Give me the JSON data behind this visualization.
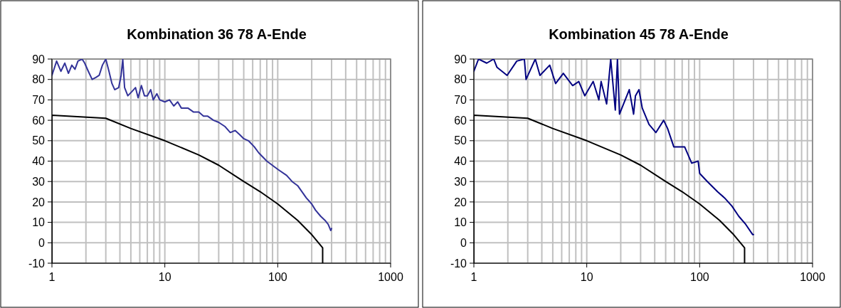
{
  "chart_data": [
    {
      "type": "line",
      "title": "Kombination 36 78 A-Ende",
      "log": "x",
      "grid": true,
      "marker": "none",
      "line_style": "solid",
      "xlim": [
        1,
        1000
      ],
      "xticks": [
        1,
        {
          "value": 2,
          "label": null
        },
        {
          "value": 3,
          "label": null
        },
        {
          "value": 4,
          "label": null
        },
        {
          "value": 5,
          "label": null
        },
        {
          "value": 6,
          "label": null
        },
        {
          "value": 7,
          "label": null
        },
        {
          "value": 8,
          "label": null
        },
        {
          "value": 9,
          "label": null
        },
        10,
        {
          "value": 20,
          "label": null
        },
        {
          "value": 30,
          "label": null
        },
        {
          "value": 40,
          "label": null
        },
        {
          "value": 50,
          "label": null
        },
        {
          "value": 60,
          "label": null
        },
        {
          "value": 70,
          "label": null
        },
        {
          "value": 80,
          "label": null
        },
        {
          "value": 90,
          "label": null
        },
        100,
        {
          "value": 200,
          "label": null
        },
        {
          "value": 300,
          "label": null
        },
        {
          "value": 400,
          "label": null
        },
        {
          "value": 500,
          "label": null
        },
        {
          "value": 600,
          "label": null
        },
        {
          "value": 700,
          "label": null
        },
        {
          "value": 800,
          "label": null
        },
        {
          "value": 900,
          "label": null
        },
        1000
      ],
      "ylim": [
        -10,
        90
      ],
      "yticks": [
        -10,
        0,
        10,
        20,
        30,
        40,
        50,
        60,
        70,
        80,
        90
      ],
      "series": [
        {
          "color": "#333399",
          "x": [
            1,
            1.1,
            1.2,
            1.3,
            1.4,
            1.5,
            1.6,
            1.7,
            1.85,
            1.95,
            2.1,
            2.27,
            2.45,
            2.62,
            2.8,
            3.0,
            3.2,
            3.4,
            3.6,
            3.9,
            4.1,
            4.24,
            4.4,
            4.7,
            5.1,
            5.5,
            5.8,
            6.2,
            6.6,
            7,
            7.5,
            7.9,
            8.5,
            9,
            10,
            11,
            12,
            13,
            14,
            16,
            18,
            20,
            22,
            24,
            27,
            30,
            34,
            38,
            42,
            46,
            50,
            55,
            62,
            68,
            80,
            100,
            120,
            134,
            150,
            179,
            200,
            216,
            240,
            262,
            280,
            295,
            300
          ],
          "values": [
            82,
            89,
            84,
            88,
            83,
            87,
            85,
            89,
            90,
            88,
            84,
            80,
            81,
            82,
            87,
            90,
            84,
            78,
            75,
            76,
            82,
            90,
            76,
            72,
            74,
            76,
            71,
            77,
            72,
            72,
            75,
            70,
            73,
            70,
            69,
            70,
            67,
            69,
            66,
            66,
            64,
            64,
            62,
            62,
            60,
            59,
            57,
            54,
            55,
            53,
            51,
            50,
            47,
            44,
            40,
            36,
            33,
            30,
            28,
            22,
            19,
            16,
            13,
            11,
            9,
            6,
            7
          ]
        },
        {
          "color": "#000000",
          "x": [
            1,
            1,
            3,
            5,
            10,
            20,
            30,
            50,
            70,
            100,
            150,
            200,
            250,
            250
          ],
          "values": [
            -10,
            62.5,
            61,
            56,
            50,
            43,
            38,
            30,
            25,
            19,
            11,
            4,
            -2.5,
            -10
          ]
        }
      ]
    },
    {
      "type": "line",
      "title": "Kombination 45 78 A-Ende",
      "log": "x",
      "grid": true,
      "marker": "none",
      "line_style": "solid",
      "xlim": [
        1,
        1000
      ],
      "xticks": [
        1,
        {
          "value": 2,
          "label": null
        },
        {
          "value": 3,
          "label": null
        },
        {
          "value": 4,
          "label": null
        },
        {
          "value": 5,
          "label": null
        },
        {
          "value": 6,
          "label": null
        },
        {
          "value": 7,
          "label": null
        },
        {
          "value": 8,
          "label": null
        },
        {
          "value": 9,
          "label": null
        },
        10,
        {
          "value": 20,
          "label": null
        },
        {
          "value": 30,
          "label": null
        },
        {
          "value": 40,
          "label": null
        },
        {
          "value": 50,
          "label": null
        },
        {
          "value": 60,
          "label": null
        },
        {
          "value": 70,
          "label": null
        },
        {
          "value": 80,
          "label": null
        },
        {
          "value": 90,
          "label": null
        },
        100,
        {
          "value": 200,
          "label": null
        },
        {
          "value": 300,
          "label": null
        },
        {
          "value": 400,
          "label": null
        },
        {
          "value": 500,
          "label": null
        },
        {
          "value": 600,
          "label": null
        },
        {
          "value": 700,
          "label": null
        },
        {
          "value": 800,
          "label": null
        },
        {
          "value": 900,
          "label": null
        },
        1000
      ],
      "ylim": [
        -10,
        90
      ],
      "yticks": [
        -10,
        0,
        10,
        20,
        30,
        40,
        50,
        60,
        70,
        80,
        90
      ],
      "series": [
        {
          "color": "#000080",
          "x": [
            1,
            1.1,
            1.3,
            1.5,
            1.6,
            1.97,
            2.4,
            2.8,
            2.9,
            3.5,
            3.85,
            4.7,
            5.3,
            6.2,
            7.5,
            8.5,
            9.6,
            11.4,
            12.8,
            13.4,
            15,
            15.7,
            16.3,
            17.9,
            18.7,
            19.5,
            23.8,
            26,
            27,
            29,
            31,
            35.6,
            41,
            48,
            52,
            59,
            73.6,
            85,
            97,
            100,
            117,
            144,
            166,
            193,
            222,
            256,
            295,
            300
          ],
          "values": [
            84,
            90,
            88,
            90,
            86,
            82,
            89,
            90,
            80,
            90,
            82,
            87,
            78,
            83,
            77,
            79,
            72,
            79,
            70,
            79,
            68,
            80,
            90,
            65,
            90,
            63,
            75,
            63,
            72,
            75,
            66,
            58,
            54,
            60,
            56,
            47,
            47,
            39,
            40,
            34,
            30,
            25,
            22,
            18,
            13,
            9,
            4,
            4
          ]
        },
        {
          "color": "#000000",
          "x": [
            1,
            1,
            3,
            5,
            10,
            20,
            30,
            50,
            70,
            100,
            150,
            200,
            250,
            250
          ],
          "values": [
            -10,
            62.5,
            61,
            56,
            50,
            43,
            38,
            30,
            25,
            19,
            11,
            4,
            -2.5,
            -10
          ]
        }
      ]
    }
  ]
}
